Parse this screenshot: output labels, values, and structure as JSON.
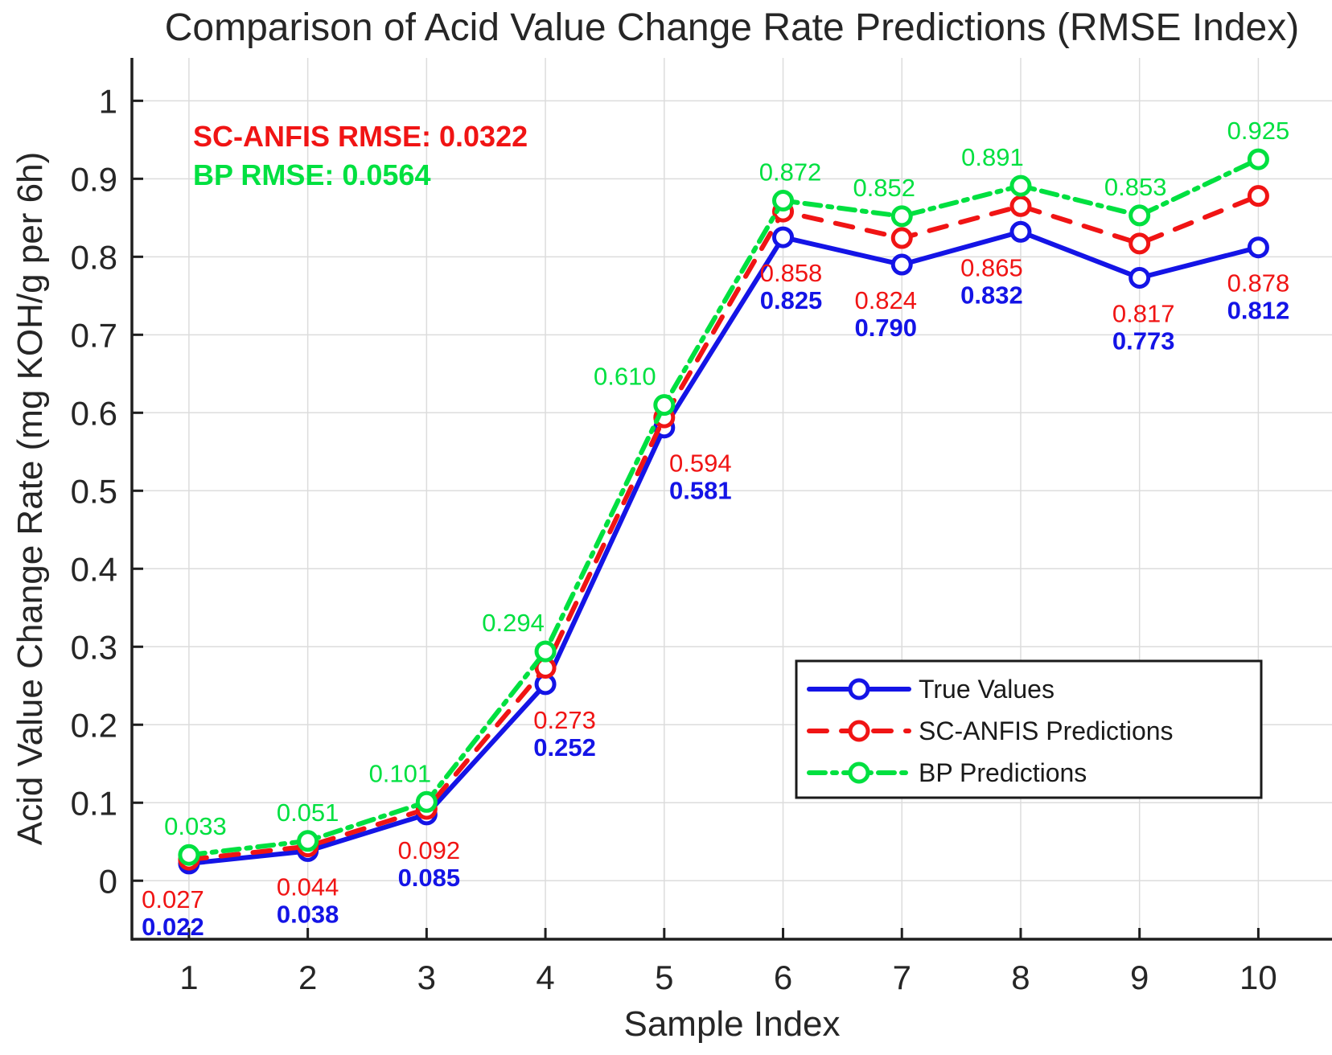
{
  "chart_data": {
    "type": "line",
    "title": "Comparison of Acid Value Change Rate Predictions (RMSE Index)",
    "xlabel": "Sample Index",
    "ylabel": "Acid Value Change Rate (mg KOH/g per 6h)",
    "x": [
      1,
      2,
      3,
      4,
      5,
      6,
      7,
      8,
      9,
      10
    ],
    "xticks": [
      1,
      2,
      3,
      4,
      5,
      6,
      7,
      8,
      9,
      10
    ],
    "yticks": [
      0,
      0.1,
      0.2,
      0.3,
      0.4,
      0.5,
      0.6,
      0.7,
      0.8,
      0.9,
      1
    ],
    "xlim": [
      0.52,
      10.62
    ],
    "ylim": [
      -0.075,
      1.055
    ],
    "grid": true,
    "legend_position": "lower-right-inside",
    "series": [
      {
        "name": "True Values",
        "color": "#1414e6",
        "line_style": "solid",
        "marker": "circle",
        "values": [
          0.022,
          0.038,
          0.085,
          0.252,
          0.581,
          0.825,
          0.79,
          0.832,
          0.773,
          0.812
        ],
        "data_labels": [
          "0.022",
          "0.038",
          "0.085",
          "0.252",
          "0.581",
          "0.825",
          "0.790",
          "0.832",
          "0.773",
          "0.812"
        ]
      },
      {
        "name": "SC-ANFIS Predictions",
        "color": "#f01414",
        "line_style": "dashed",
        "marker": "circle",
        "values": [
          0.027,
          0.044,
          0.092,
          0.273,
          0.594,
          0.858,
          0.824,
          0.865,
          0.817,
          0.878
        ],
        "data_labels": [
          "0.027",
          "0.044",
          "0.092",
          "0.273",
          "0.594",
          "0.858",
          "0.824",
          "0.865",
          "0.817",
          "0.878"
        ]
      },
      {
        "name": "BP Predictions",
        "color": "#00e040",
        "line_style": "dashdot",
        "marker": "circle",
        "values": [
          0.033,
          0.051,
          0.101,
          0.294,
          0.61,
          0.872,
          0.852,
          0.891,
          0.853,
          0.925
        ],
        "data_labels": [
          "0.033",
          "0.051",
          "0.101",
          "0.294",
          "0.610",
          "0.872",
          "0.852",
          "0.891",
          "0.853",
          "0.925"
        ]
      }
    ],
    "annotations": [
      {
        "text": "SC-ANFIS RMSE: 0.0322",
        "color": "#f01414"
      },
      {
        "text": "BP RMSE: 0.0564",
        "color": "#00e040"
      }
    ],
    "legend_items": [
      "True Values",
      "SC-ANFIS Predictions",
      "BP Predictions"
    ],
    "grid_color": "#dcdcdc",
    "axis_color": "#1f1f1f"
  }
}
